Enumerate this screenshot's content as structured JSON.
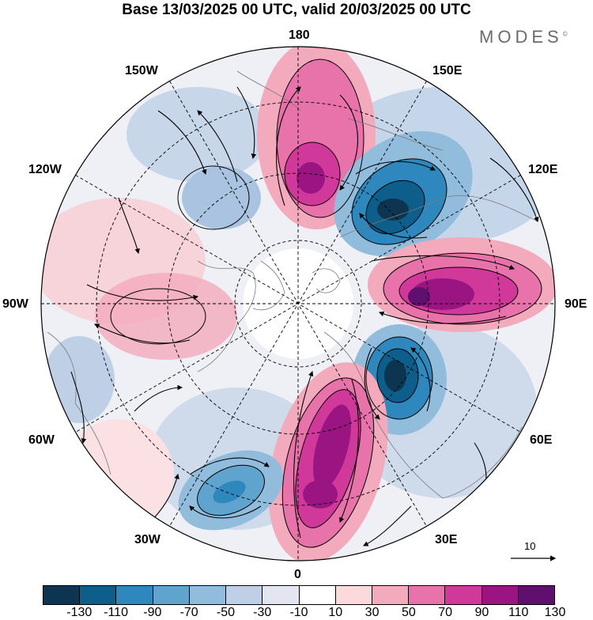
{
  "title": "Base 13/03/2025 00 UTC, valid 20/03/2025 00 UTC",
  "brand": "MODES",
  "brand_mark": "©",
  "longitude_labels": {
    "n180": "180",
    "w150": "150W",
    "e150": "150E",
    "w120": "120W",
    "e120": "120E",
    "w90": "90W",
    "e90": "90E",
    "w60": "60W",
    "e60": "60E",
    "w30": "30W",
    "e30": "30E",
    "s0": "0"
  },
  "vector_reference": "10",
  "colorbar": {
    "ticks": [
      "-130",
      "-110",
      "-90",
      "-70",
      "-50",
      "-30",
      "-10",
      "10",
      "30",
      "50",
      "70",
      "90",
      "110",
      "130"
    ],
    "colors": [
      "#0d3552",
      "#0e5e8c",
      "#2f88bd",
      "#5fa4cf",
      "#92bcdc",
      "#bfd0e6",
      "#e3e5f0",
      "#ffffff",
      "#fbd9dd",
      "#f3aabd",
      "#e873aa",
      "#d0399a",
      "#9a1482",
      "#5f0f6e"
    ]
  },
  "colors": {
    "pos_strong": "#9a1482",
    "pos_mid": "#d0399a",
    "pos_weak": "#f3aabd",
    "neg_strong": "#0d3552",
    "neg_mid": "#2f88bd",
    "neg_weak": "#bfd0e6"
  }
}
